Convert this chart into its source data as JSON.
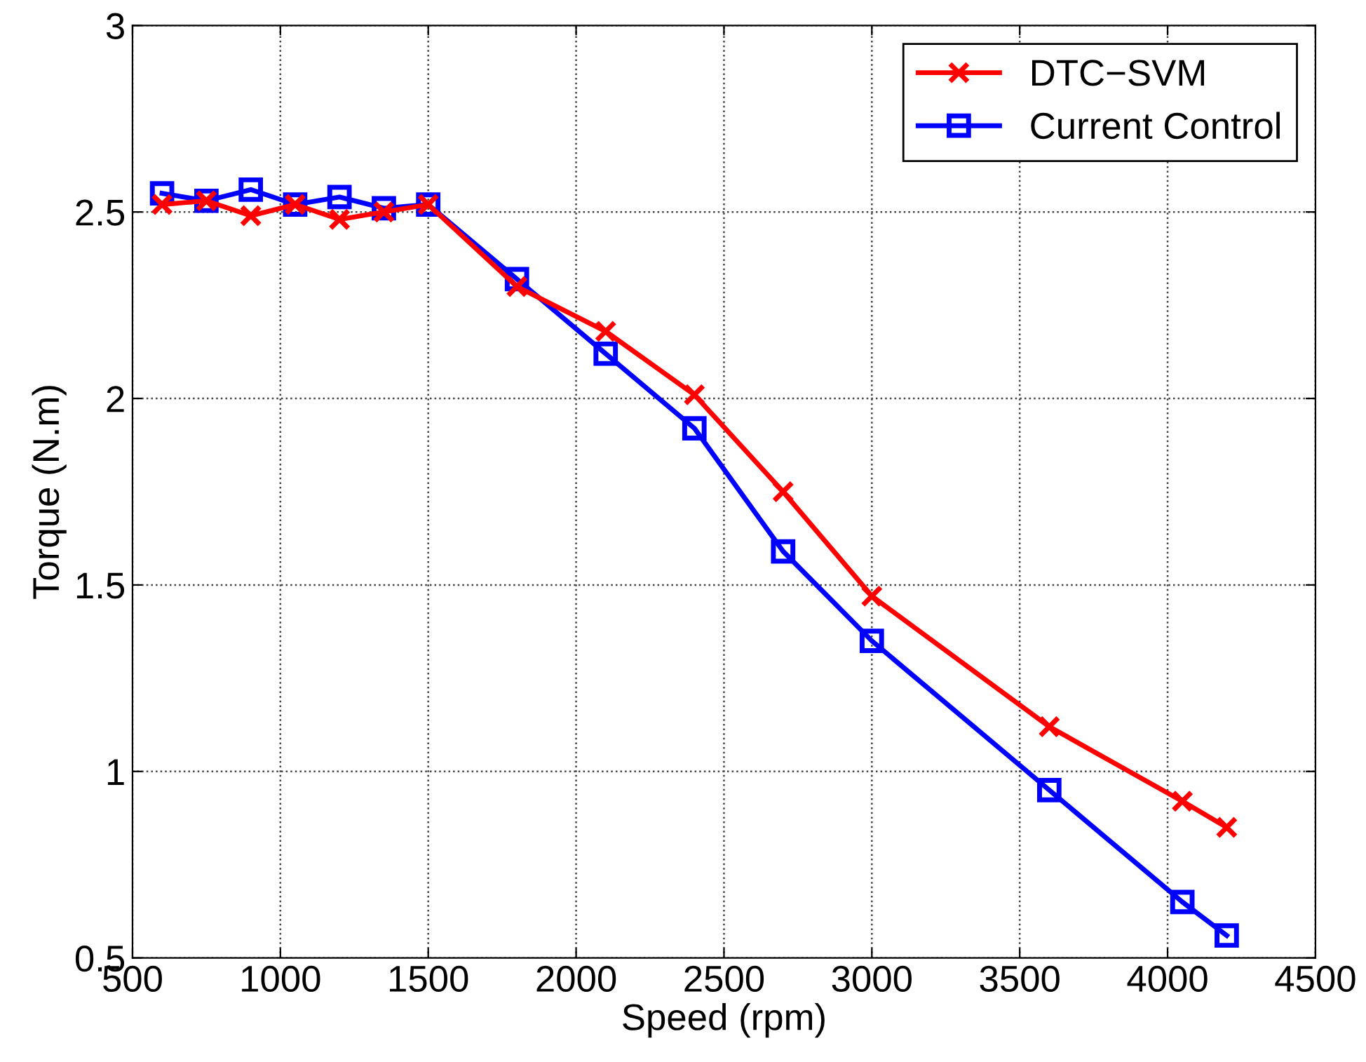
{
  "chart_data": {
    "type": "line",
    "xlabel": "Speed (rpm)",
    "ylabel": "Torque (N.m)",
    "x": [
      600,
      750,
      900,
      1050,
      1200,
      1350,
      1500,
      1800,
      2100,
      2400,
      2700,
      3000,
      3600,
      4050,
      4200
    ],
    "series": [
      {
        "name": "DTC−SVM",
        "color": "#ff0000",
        "marker": "cross",
        "values": [
          2.52,
          2.53,
          2.49,
          2.52,
          2.48,
          2.5,
          2.52,
          2.3,
          2.18,
          2.01,
          1.75,
          1.47,
          1.12,
          0.92,
          0.85
        ]
      },
      {
        "name": "Current Control",
        "color": "#0000ff",
        "marker": "square",
        "values": [
          2.55,
          2.53,
          2.56,
          2.52,
          2.54,
          2.51,
          2.52,
          2.32,
          2.12,
          1.92,
          1.59,
          1.35,
          0.95,
          0.65,
          0.56
        ]
      }
    ],
    "xlim": [
      500,
      4500
    ],
    "xticks": [
      500,
      1000,
      1500,
      2000,
      2500,
      3000,
      3500,
      4000,
      4500
    ],
    "ylim": [
      0.5,
      3
    ],
    "yticks": [
      0.5,
      1,
      1.5,
      2,
      2.5,
      3
    ],
    "grid": true,
    "legend": "top right",
    "line_style": "solid"
  }
}
